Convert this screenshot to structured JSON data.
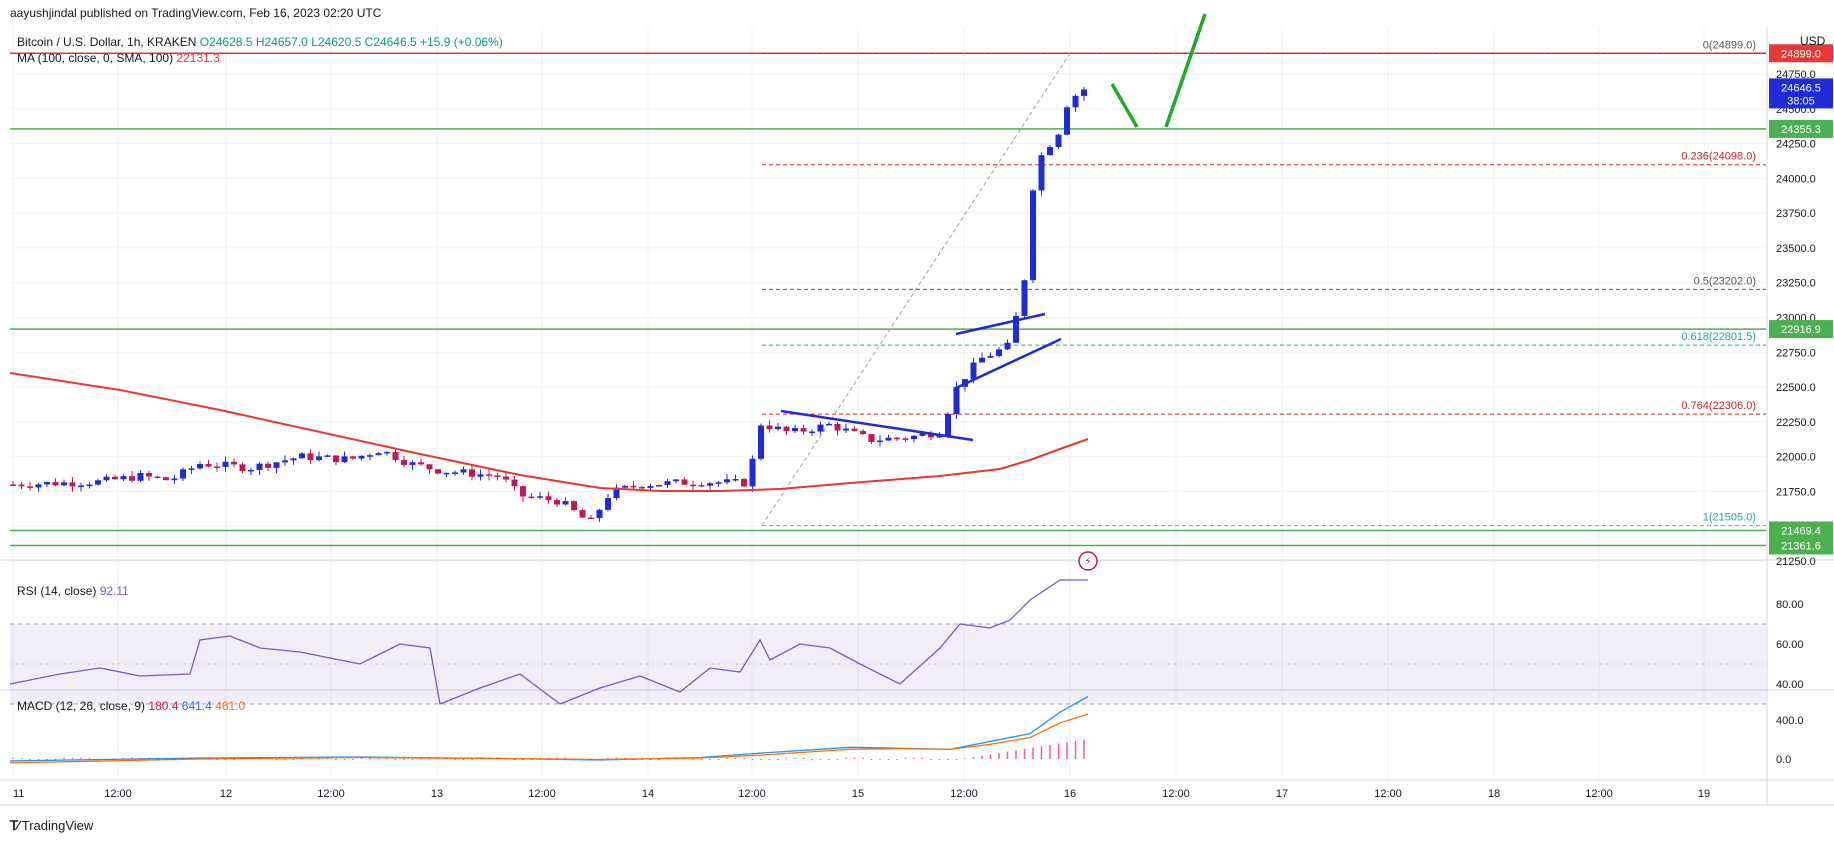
{
  "publisher": "aayushjindal published on TradingView.com, Feb 16, 2023 02:20 UTC",
  "symbol": {
    "name": "Bitcoin / U.S. Dollar, 1h, KRAKEN",
    "open": "O24628.5",
    "high": "H24657.0",
    "low": "L24620.5",
    "close": "C24646.5",
    "change": "+15.9 (+0.06%)"
  },
  "ma": {
    "label": "MA (100, close, 0, SMA, 100)",
    "value": "22131.3"
  },
  "rsi": {
    "label": "RSI (14, close)",
    "value": "92.11"
  },
  "macd": {
    "label": "MACD (12, 26, close, 9)",
    "hist": "180.4",
    "macd": "641.4",
    "signal": "461.0"
  },
  "currency": "USD",
  "branding": "TradingView",
  "price_axis": {
    "ticks": [
      "24750.0",
      "24500.0",
      "24250.0",
      "24000.0",
      "23750.0",
      "23500.0",
      "23250.0",
      "23000.0",
      "22750.0",
      "22500.0",
      "22250.0",
      "22000.0",
      "21750.0",
      "21500.0",
      "21250.0"
    ],
    "current_price": "24646.5",
    "countdown": "38:05",
    "resistance_label": "24899.0",
    "level_labels": [
      "24355.3",
      "22916.9",
      "21469.4",
      "21361.6"
    ]
  },
  "rsi_axis": {
    "ticks": [
      "80.00",
      "60.00",
      "40.00"
    ]
  },
  "macd_axis": {
    "ticks": [
      "400.0",
      "0.0"
    ]
  },
  "time_axis": [
    "11",
    "12:00",
    "12",
    "12:00",
    "13",
    "12:00",
    "14",
    "12:00",
    "15",
    "12:00",
    "16",
    "12:00",
    "17",
    "12:00",
    "18",
    "12:00",
    "19"
  ],
  "fib_labels": [
    "0(24899.0)",
    "0.236(24098.0)",
    "0.5(23202.0)",
    "0.618(22801.5)",
    "0.764(22306.0)",
    "1(21505.0)"
  ],
  "colors": {
    "up": "#1f2bd6",
    "down": "#c2185b",
    "ma": "#e53935",
    "support": "#4caf50",
    "resistance": "#e53935",
    "rsi": "#7e57c2",
    "macd": "#2196f3",
    "signal": "#ff6d00",
    "fib_red": "#c62828",
    "fib_teal": "#26a69a",
    "arrow": "#1faa2d"
  },
  "chart_data": {
    "type": "candlestick",
    "symbol": "Bitcoin / U.S. Dollar, 1h, KRAKEN",
    "ylim": [
      21250,
      25000
    ],
    "horizontal_levels": {
      "resistance": 24899.0,
      "support": [
        24355.3,
        22916.9,
        21469.4,
        21361.6
      ]
    },
    "fibonacci": [
      {
        "ratio": 0,
        "price": 24899.0
      },
      {
        "ratio": 0.236,
        "price": 24098.0
      },
      {
        "ratio": 0.5,
        "price": 23202.0
      },
      {
        "ratio": 0.618,
        "price": 22801.5
      },
      {
        "ratio": 0.764,
        "price": 22306.0
      },
      {
        "ratio": 1,
        "price": 21505.0
      }
    ],
    "ma100_end": 22131.3,
    "rsi_last": 92.11,
    "macd_last": {
      "hist": 180.4,
      "macd": 641.4,
      "signal": 461.0
    }
  }
}
